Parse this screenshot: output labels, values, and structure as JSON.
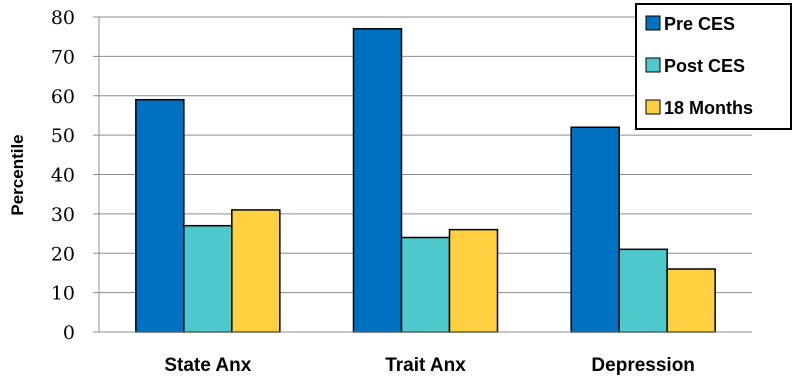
{
  "chart_data": {
    "type": "bar",
    "ylabel": "Percentile",
    "xlabel": "",
    "ylim": [
      0,
      80
    ],
    "yticks": [
      0,
      10,
      20,
      30,
      40,
      50,
      60,
      70,
      80
    ],
    "categories": [
      "State Anx",
      "Trait Anx",
      "Depression"
    ],
    "series": [
      {
        "name": "Pre CES",
        "color": "#0070C0",
        "values": [
          59,
          77,
          52
        ]
      },
      {
        "name": "Post CES",
        "color": "#4FC8CC",
        "values": [
          27,
          24,
          21
        ]
      },
      {
        "name": "18 Months",
        "color": "#FFD03F",
        "values": [
          31,
          26,
          16
        ]
      }
    ],
    "grid": true,
    "legend": "top-right"
  }
}
